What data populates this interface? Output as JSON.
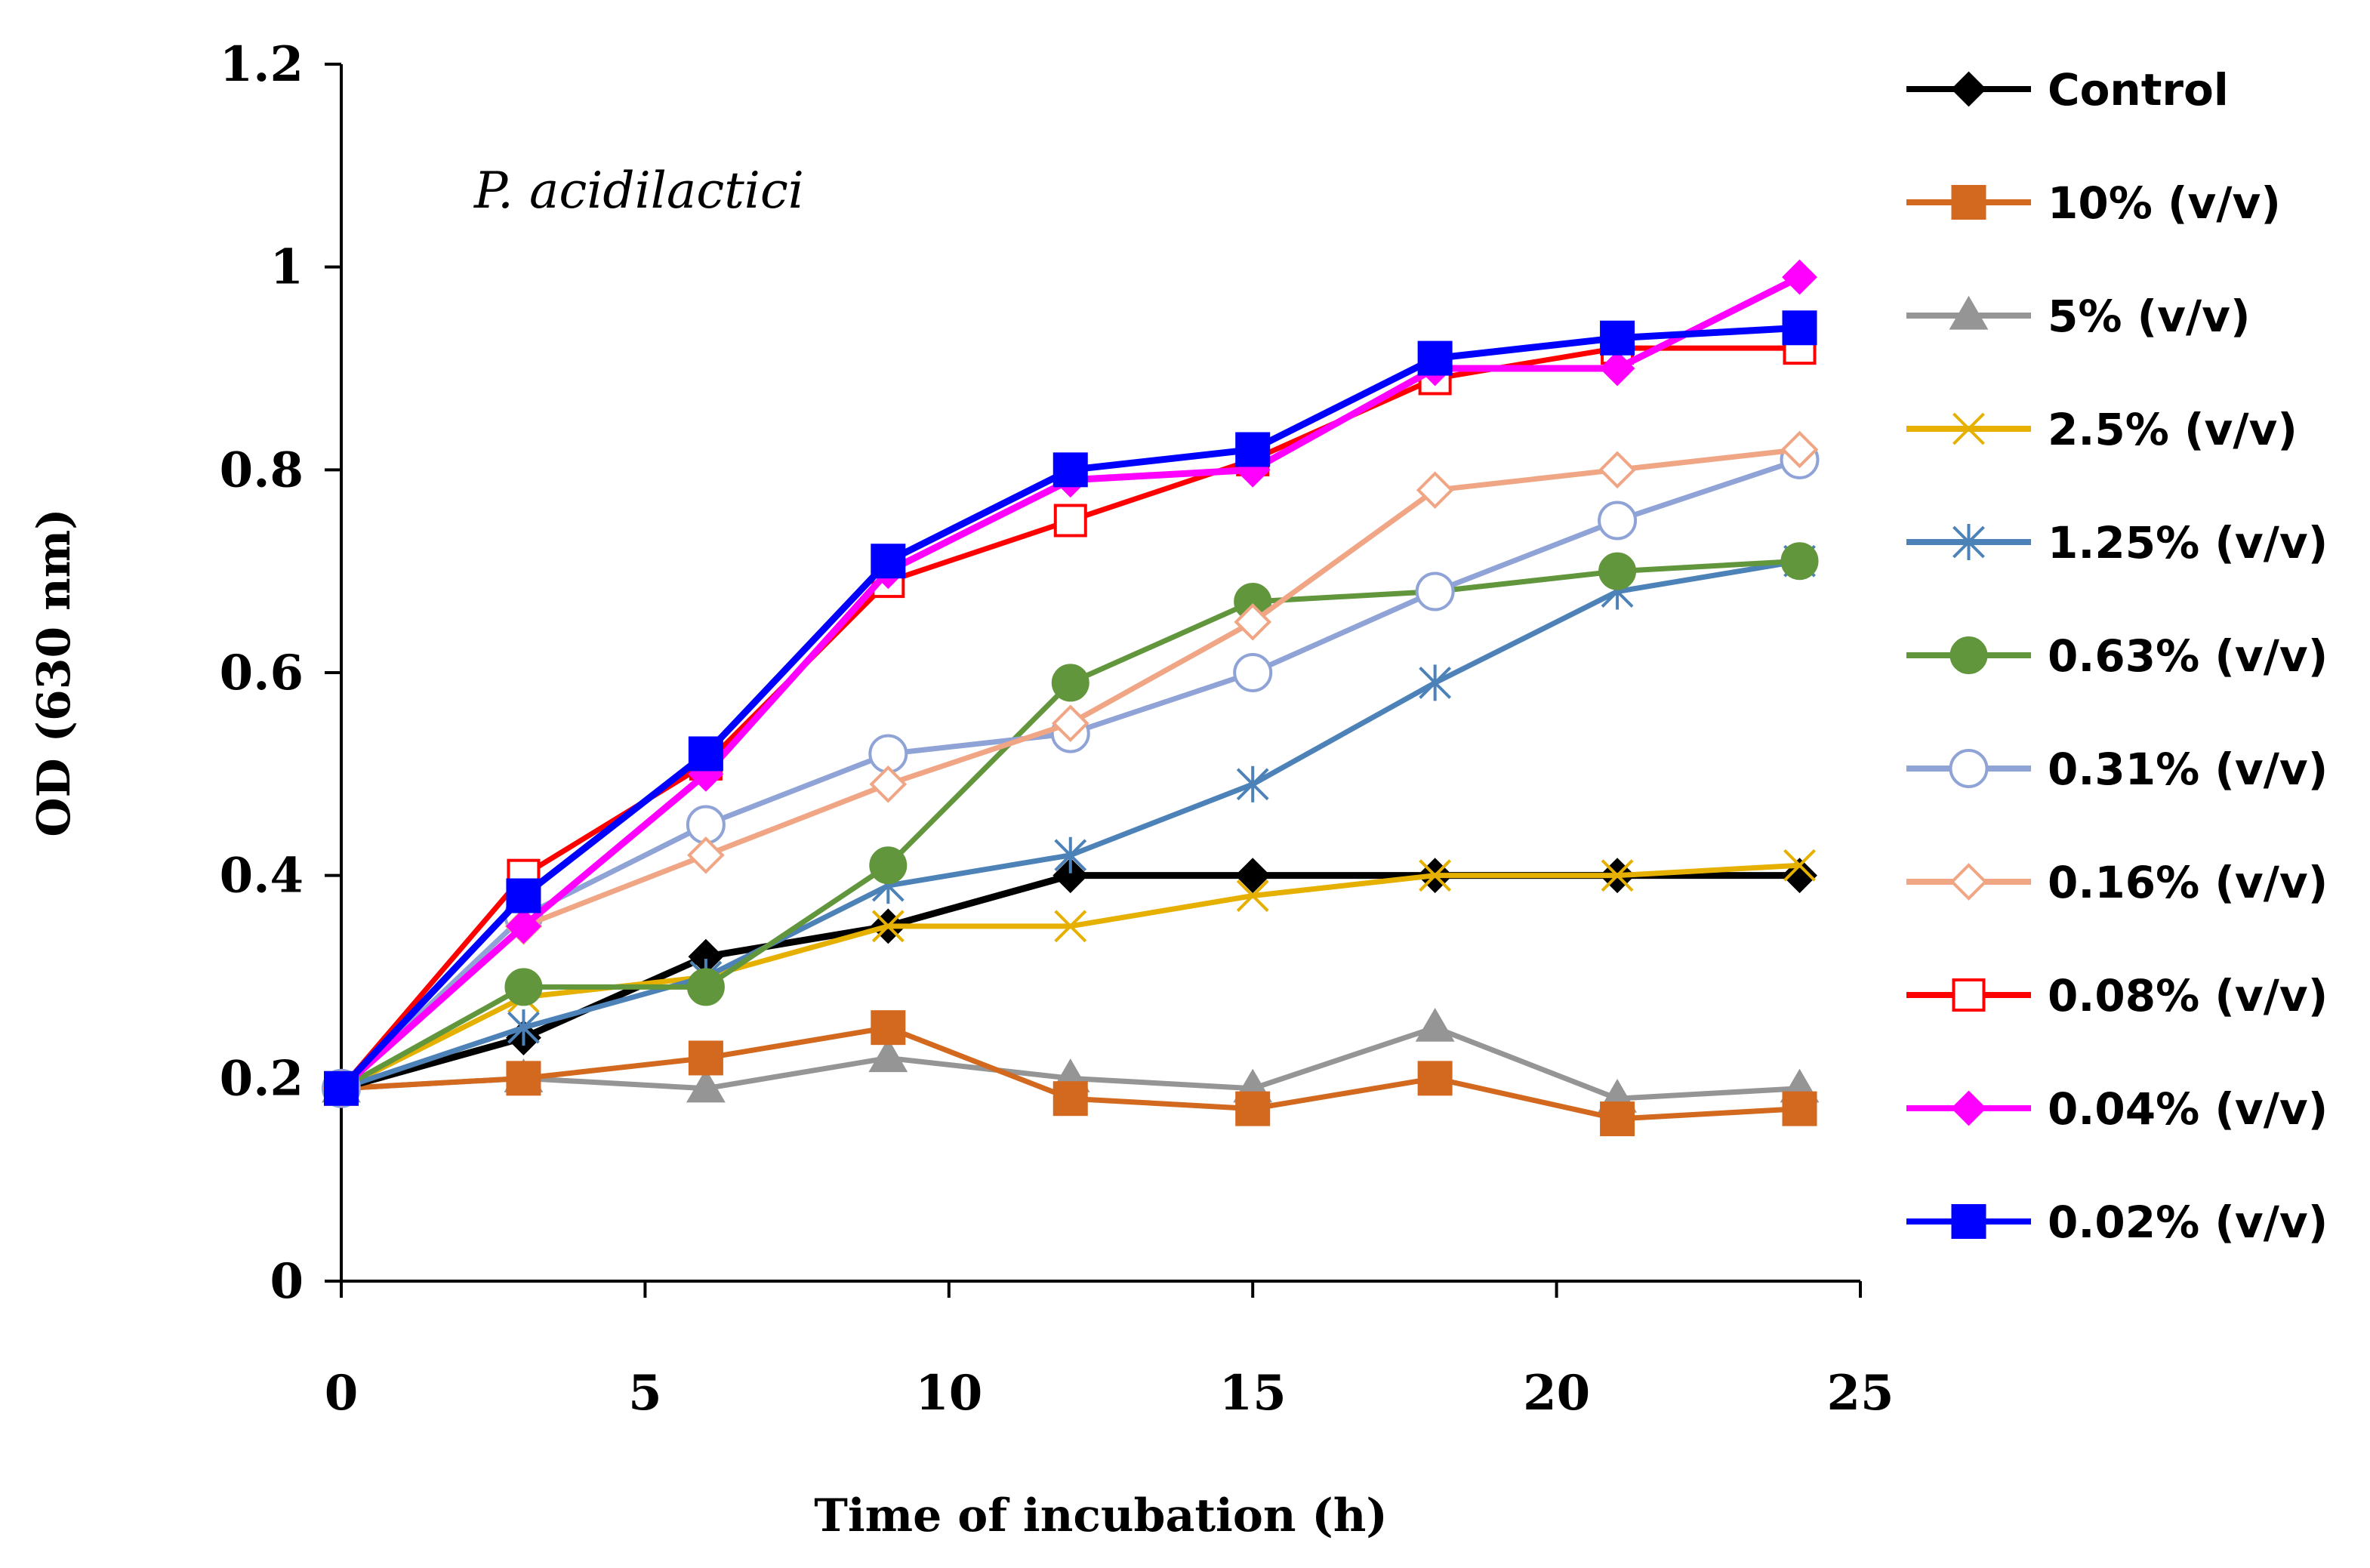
{
  "chart_data": {
    "type": "line",
    "title": "",
    "annotation": "P. acidilactici",
    "xlabel": "Time of incubation (h)",
    "ylabel": "OD (630 nm)",
    "xlim": [
      0,
      25
    ],
    "ylim": [
      0,
      1.2
    ],
    "x_ticks": [
      0,
      5,
      10,
      15,
      20,
      25
    ],
    "y_ticks": [
      0,
      0.2,
      0.4,
      0.6,
      0.8,
      1,
      1.2
    ],
    "x_tick_labels": [
      "0",
      "5",
      "10",
      "15",
      "20",
      "25"
    ],
    "y_tick_labels": [
      "0",
      "0.2",
      "0.4",
      "0.6",
      "0.8",
      "1",
      "1.2"
    ],
    "grid": false,
    "legend_position": "right",
    "x": [
      0,
      3,
      6,
      9,
      12,
      15,
      18,
      21,
      24
    ],
    "series": [
      {
        "name": "Control",
        "color": "#000000",
        "marker": "diamond-filled",
        "values": [
          0.19,
          0.24,
          0.32,
          0.35,
          0.4,
          0.4,
          0.4,
          0.4,
          0.4
        ]
      },
      {
        "name": "10% (v/v)",
        "color": "#D2691E",
        "marker": "square-filled",
        "values": [
          0.19,
          0.2,
          0.22,
          0.25,
          0.18,
          0.17,
          0.2,
          0.16,
          0.17
        ]
      },
      {
        "name": "5% (v/v)",
        "color": "#959595",
        "marker": "triangle-filled",
        "values": [
          0.19,
          0.2,
          0.19,
          0.22,
          0.2,
          0.19,
          0.25,
          0.18,
          0.19
        ]
      },
      {
        "name": "2.5% (v/v)",
        "color": "#E5B000",
        "marker": "x",
        "values": [
          0.19,
          0.28,
          0.3,
          0.35,
          0.35,
          0.38,
          0.4,
          0.4,
          0.41
        ]
      },
      {
        "name": "1.25% (v/v)",
        "color": "#4C82B8",
        "marker": "asterisk",
        "values": [
          0.19,
          0.25,
          0.3,
          0.39,
          0.42,
          0.49,
          0.59,
          0.68,
          0.71
        ]
      },
      {
        "name": "0.63% (v/v)",
        "color": "#62963D",
        "marker": "circle-filled",
        "values": [
          0.19,
          0.29,
          0.29,
          0.41,
          0.59,
          0.67,
          0.68,
          0.7,
          0.71
        ]
      },
      {
        "name": "0.31% (v/v)",
        "color": "#8FA3D6",
        "marker": "circle-open",
        "values": [
          0.19,
          0.36,
          0.45,
          0.52,
          0.54,
          0.6,
          0.68,
          0.75,
          0.81
        ]
      },
      {
        "name": "0.16% (v/v)",
        "color": "#F0A584",
        "marker": "diamond-open",
        "values": [
          0.19,
          0.35,
          0.42,
          0.49,
          0.55,
          0.65,
          0.78,
          0.8,
          0.82
        ]
      },
      {
        "name": "0.08% (v/v)",
        "color": "#FF0000",
        "marker": "square-open",
        "values": [
          0.19,
          0.4,
          0.51,
          0.69,
          0.75,
          0.81,
          0.89,
          0.92,
          0.92
        ]
      },
      {
        "name": "0.04% (v/v)",
        "color": "#FF00FF",
        "marker": "diamond-filled",
        "values": [
          0.19,
          0.35,
          0.5,
          0.7,
          0.79,
          0.8,
          0.9,
          0.9,
          0.99
        ]
      },
      {
        "name": "0.02% (v/v)",
        "color": "#0000FF",
        "marker": "square-filled",
        "values": [
          0.19,
          0.38,
          0.52,
          0.71,
          0.8,
          0.82,
          0.91,
          0.93,
          0.94
        ]
      }
    ]
  }
}
